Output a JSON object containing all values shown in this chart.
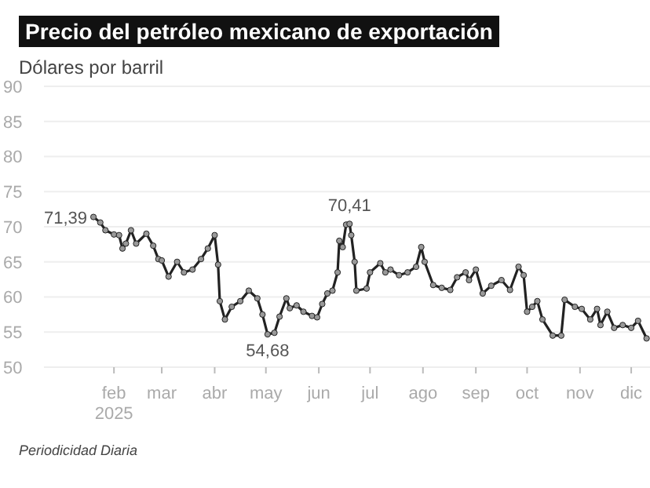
{
  "chart_data": {
    "type": "line",
    "title": "Precio del petróleo mexicano de exportación",
    "ylabel": "Dólares por barril",
    "x": [
      "2025-01-20",
      "2025-01-24",
      "2025-01-27",
      "2025-02-01",
      "2025-02-04",
      "2025-02-06",
      "2025-02-08",
      "2025-02-11",
      "2025-02-14",
      "2025-02-20",
      "2025-02-24",
      "2025-02-27",
      "2025-03-01",
      "2025-03-05",
      "2025-03-10",
      "2025-03-14",
      "2025-03-19",
      "2025-03-24",
      "2025-03-28",
      "2025-04-01",
      "2025-04-03",
      "2025-04-04",
      "2025-04-07",
      "2025-04-11",
      "2025-04-16",
      "2025-04-21",
      "2025-04-26",
      "2025-04-29",
      "2025-05-02",
      "2025-05-06",
      "2025-05-09",
      "2025-05-13",
      "2025-05-15",
      "2025-05-19",
      "2025-05-23",
      "2025-05-28",
      "2025-05-31",
      "2025-06-03",
      "2025-06-06",
      "2025-06-09",
      "2025-06-12",
      "2025-06-13",
      "2025-06-15",
      "2025-06-17",
      "2025-06-19",
      "2025-06-20",
      "2025-06-22",
      "2025-06-23",
      "2025-06-29",
      "2025-07-01",
      "2025-07-07",
      "2025-07-10",
      "2025-07-13",
      "2025-07-18",
      "2025-07-23",
      "2025-07-28",
      "2025-07-31",
      "2025-08-02",
      "2025-08-07",
      "2025-08-12",
      "2025-08-17",
      "2025-08-21",
      "2025-08-26",
      "2025-08-28",
      "2025-09-01",
      "2025-09-05",
      "2025-09-10",
      "2025-09-16",
      "2025-09-21",
      "2025-09-26",
      "2025-09-29",
      "2025-10-01",
      "2025-10-04",
      "2025-10-07",
      "2025-10-10",
      "2025-10-16",
      "2025-10-21",
      "2025-10-23",
      "2025-10-29",
      "2025-11-02",
      "2025-11-07",
      "2025-11-11",
      "2025-11-13",
      "2025-11-17",
      "2025-11-21",
      "2025-11-26",
      "2025-12-01",
      "2025-12-05",
      "2025-12-10"
    ],
    "series": [
      {
        "color": "#222222",
        "values": [
          71.39,
          70.6,
          69.5,
          68.9,
          68.8,
          66.9,
          67.6,
          69.5,
          67.6,
          69,
          67.3,
          65.4,
          65.2,
          62.9,
          65,
          63.5,
          63.9,
          65.4,
          66.9,
          68.8,
          64.6,
          59.4,
          56.8,
          58.6,
          59.4,
          60.9,
          59.8,
          57.5,
          54.68,
          54.9,
          57.2,
          59.8,
          58.4,
          58.8,
          57.9,
          57.3,
          57.1,
          59,
          60.5,
          60.9,
          63.5,
          68,
          67.1,
          70.3,
          70.41,
          68.8,
          65,
          60.9,
          61.2,
          63.5,
          64.8,
          63.5,
          63.9,
          63.1,
          63.5,
          64.3,
          67.1,
          65,
          61.7,
          61.3,
          61,
          62.8,
          63.5,
          62.4,
          63.9,
          60.5,
          61.6,
          62.4,
          61,
          64.3,
          63.1,
          57.9,
          58.6,
          59.4,
          56.8,
          54.5,
          54.5,
          59.6,
          58.6,
          58.3,
          56.8,
          58.3,
          56,
          57.9,
          55.6,
          56,
          55.6,
          56.6,
          54.1
        ]
      }
    ],
    "xlim": [
      "2024-12-22",
      "2025-12-12"
    ],
    "xticks": [
      {
        "value": "2025-02-01",
        "label": "feb 2025"
      },
      {
        "value": "2025-03-01",
        "label": "mar"
      },
      {
        "value": "2025-04-01",
        "label": "abr"
      },
      {
        "value": "2025-05-01",
        "label": "may"
      },
      {
        "value": "2025-06-01",
        "label": "jun"
      },
      {
        "value": "2025-07-01",
        "label": "jul"
      },
      {
        "value": "2025-08-01",
        "label": "ago"
      },
      {
        "value": "2025-09-01",
        "label": "sep"
      },
      {
        "value": "2025-10-01",
        "label": "oct"
      },
      {
        "value": "2025-11-01",
        "label": "nov"
      },
      {
        "value": "2025-12-01",
        "label": "dic"
      }
    ],
    "ylim": [
      50,
      90
    ],
    "yticks": [
      50,
      55,
      60,
      65,
      70,
      75,
      80,
      85,
      90
    ],
    "grid": "y",
    "marker": "circle",
    "line_style": "solid",
    "annotations": [
      {
        "text": "71,39",
        "x": "2025-01-20",
        "y": 71.39
      },
      {
        "text": "54,68",
        "x": "2025-05-02",
        "y": 54.68
      },
      {
        "text": "70,41",
        "x": "2025-06-19",
        "y": 70.41
      },
      "Periodicidad Diaria"
    ]
  }
}
